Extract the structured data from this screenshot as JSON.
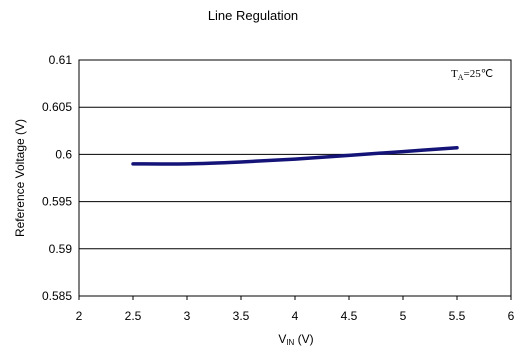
{
  "chart_data": {
    "type": "line",
    "title": "Line Regulation",
    "xlabel_main": "V",
    "xlabel_sub": "IN",
    "xlabel_unit": " (V)",
    "ylabel": "Reference Voltage (V)",
    "annotation_main": "T",
    "annotation_sub": "A",
    "annotation_rest": "=25℃",
    "xlim": [
      2,
      6
    ],
    "ylim": [
      0.585,
      0.61
    ],
    "x_ticks": [
      "2",
      "2.5",
      "3",
      "3.5",
      "4",
      "4.5",
      "5",
      "5.5",
      "6"
    ],
    "y_ticks": [
      "0.61",
      "0.605",
      "0.6",
      "0.595",
      "0.59",
      "0.585"
    ],
    "grid": true,
    "series": [
      {
        "color": "#141478",
        "x": [
          2.5,
          3.0,
          3.5,
          4.0,
          4.5,
          5.0,
          5.5
        ],
        "y": [
          0.599,
          0.599,
          0.5992,
          0.5995,
          0.5999,
          0.6003,
          0.6007
        ]
      }
    ]
  }
}
